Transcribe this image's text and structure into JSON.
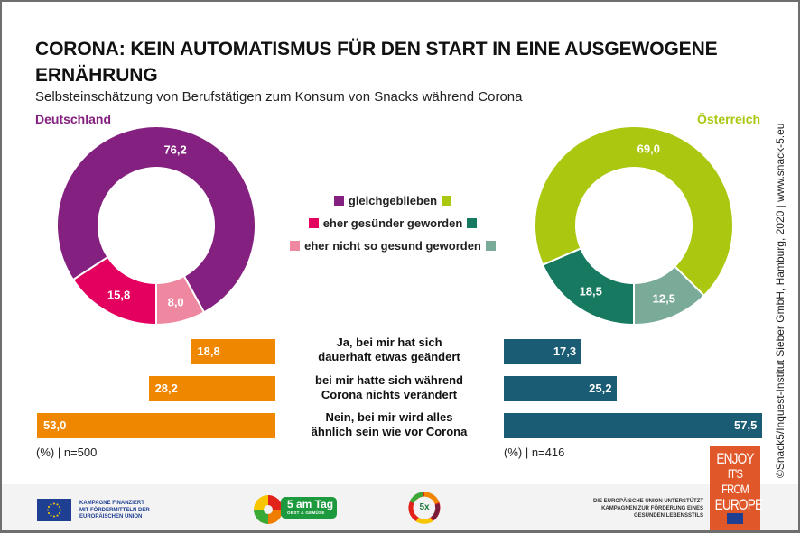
{
  "header": {
    "title": "CORONA: KEIN AUTOMATISMUS FÜR DEN START IN EINE AUSGEWOGENE ERNÄHRUNG",
    "subtitle": "Selbsteinschätzung von Berufstätigen zum Konsum von Snacks während Corona"
  },
  "colors": {
    "de_same": "#84207f",
    "de_healthier": "#e4005e",
    "de_less_healthy": "#ee88a0",
    "at_same": "#abc70f",
    "at_healthier": "#177a60",
    "at_less_healthy": "#7aaa98",
    "de_bar": "#ef8700",
    "at_bar": "#1a5c74"
  },
  "chart_data": [
    {
      "type": "pie",
      "title": "Deutschland",
      "categories": [
        "gleichgeblieben",
        "eher gesünder geworden",
        "eher nicht so gesund geworden"
      ],
      "values": [
        76.2,
        15.8,
        8.0
      ],
      "labels": [
        "76,2",
        "15,8",
        "8,0"
      ],
      "unit": "%"
    },
    {
      "type": "pie",
      "title": "Österreich",
      "categories": [
        "gleichgeblieben",
        "eher gesünder geworden",
        "eher nicht so gesund geworden"
      ],
      "values": [
        69.0,
        18.5,
        12.5
      ],
      "labels": [
        "69,0",
        "18,5",
        "12,5"
      ],
      "unit": "%"
    },
    {
      "type": "bar",
      "title": "Deutschland",
      "orientation": "horizontal",
      "categories": [
        "Ja, bei mir hat sich dauerhaft etwas geändert",
        "bei mir hatte sich während Corona nichts verändert",
        "Nein, bei mir wird alles ähnlich sein wie vor Corona"
      ],
      "values": [
        18.8,
        28.2,
        53.0
      ],
      "labels": [
        "18,8",
        "28,2",
        "53,0"
      ],
      "note": "(%) | n=500"
    },
    {
      "type": "bar",
      "title": "Österreich",
      "orientation": "horizontal",
      "categories": [
        "Ja, bei mir hat sich dauerhaft etwas geändert",
        "bei mir hatte sich während Corona nichts verändert",
        "Nein, bei mir wird alles ähnlich sein wie vor Corona"
      ],
      "values": [
        17.3,
        25.2,
        57.5
      ],
      "labels": [
        "17,3",
        "25,2",
        "57,5"
      ],
      "note": "(%) | n=416"
    }
  ],
  "legend": [
    {
      "label": "gleichgeblieben"
    },
    {
      "label": "eher gesünder geworden"
    },
    {
      "label": "eher nicht so gesund geworden"
    }
  ],
  "questions": [
    {
      "line1": "Ja, bei mir hat sich",
      "line2": "dauerhaft etwas geändert"
    },
    {
      "line1": "bei mir hatte sich während",
      "line2": "Corona nichts verändert"
    },
    {
      "line1": "Nein, bei mir wird alles",
      "line2": "ähnlich sein wie vor Corona"
    }
  ],
  "credit": "©Snack5/Inquest-Institut Sieber GmbH, Hamburg, 2020 | www.snack-5.eu",
  "footer": {
    "eu_text": [
      "KAMPAGNE FINANZIERT",
      "MIT FÖRDERMITTELN DER",
      "EUROPÄISCHEN UNION"
    ],
    "five_a_day_title": "5 am Tag",
    "five_a_day_sub": "OBST & GEMÜSE",
    "fivex_label": "5x",
    "eu_support_text": [
      "DIE EUROPÄISCHE UNION UNTERSTÜTZT",
      "KAMPAGNEN ZUR FÖRDERUNG EINES",
      "GESUNDEN LEBENSSTILS"
    ],
    "enjoy_lines": [
      "ENJOY",
      "IT'S FROM",
      "EUROPE"
    ]
  }
}
